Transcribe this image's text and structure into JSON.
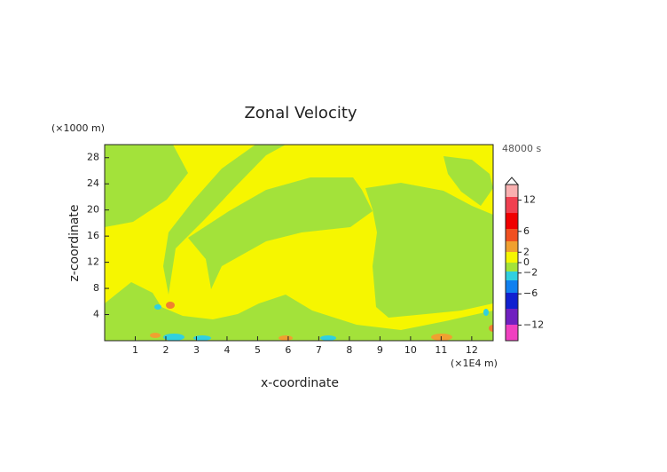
{
  "chart_data": {
    "type": "contour",
    "title": "Zonal Velocity",
    "xlabel": "x-coordinate",
    "ylabel": "z-coordinate",
    "x_unit_label": "(×1E4 m)",
    "y_unit_label": "(×1000 m)",
    "time_label": "48000 s",
    "xlim": [
      0,
      12.7
    ],
    "xticks": [
      1,
      2,
      3,
      4,
      5,
      6,
      7,
      8,
      9,
      10,
      11,
      12
    ],
    "ylim": [
      0,
      30
    ],
    "yticks": [
      4,
      8,
      12,
      16,
      20,
      24,
      28
    ],
    "colorbar": {
      "lim": [
        -15,
        15
      ],
      "ticks": [
        12,
        6,
        2,
        0,
        {
          "value": -2,
          "label": "−2"
        },
        {
          "value": -6,
          "label": "−6"
        },
        {
          "value": -12,
          "label": "−12"
        }
      ]
    }
  }
}
